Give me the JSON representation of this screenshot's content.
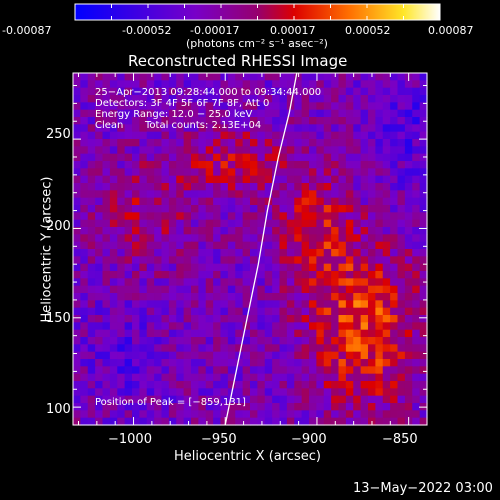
{
  "colorbar": {
    "ticks": [
      "-0.00087",
      "-0.00052",
      "-0.00017",
      "0.00017",
      "0.00052",
      "0.00087"
    ],
    "units": "(photons cm⁻² s⁻¹ asec⁻²)"
  },
  "chart_data": {
    "type": "heatmap",
    "title": "Reconstructed RHESSI Image",
    "xlabel": "Heliocentric X (arcsec)",
    "ylabel": "Heliocentric Y (arcsec)",
    "xlim": [
      -1033,
      -840
    ],
    "ylim": [
      90,
      287
    ],
    "x_ticks": [
      -1000,
      -950,
      -900,
      -850
    ],
    "y_ticks": [
      100,
      150,
      200,
      250
    ],
    "x_tick_labels": [
      "−1000",
      "−950",
      "−900",
      "−850"
    ],
    "y_tick_labels": [
      "100",
      "150",
      "200",
      "250"
    ],
    "color_range": [
      -0.00087,
      0.00087
    ],
    "peak": [
      -859,
      131
    ],
    "limb_points": [
      [
        -950,
        90
      ],
      [
        -944,
        120
      ],
      [
        -938,
        150
      ],
      [
        -932,
        180
      ],
      [
        -927,
        210
      ],
      [
        -921,
        240
      ],
      [
        -915,
        265
      ],
      [
        -911,
        287
      ]
    ],
    "annotations": {
      "time": "25−Apr−2013 09:28:44.000 to 09:34:44.000",
      "detectors": "Detectors: 3F 4F 5F 6F 7F 8F, Att 0",
      "energy": "Energy Range: 12.0 − 25.0 keV",
      "clean": "Clean",
      "counts": "Total counts: 2.13E+04",
      "peak_label": "Position of Peak = [−859,131]"
    }
  },
  "footer": {
    "date": "13−May−2022 03:00"
  }
}
